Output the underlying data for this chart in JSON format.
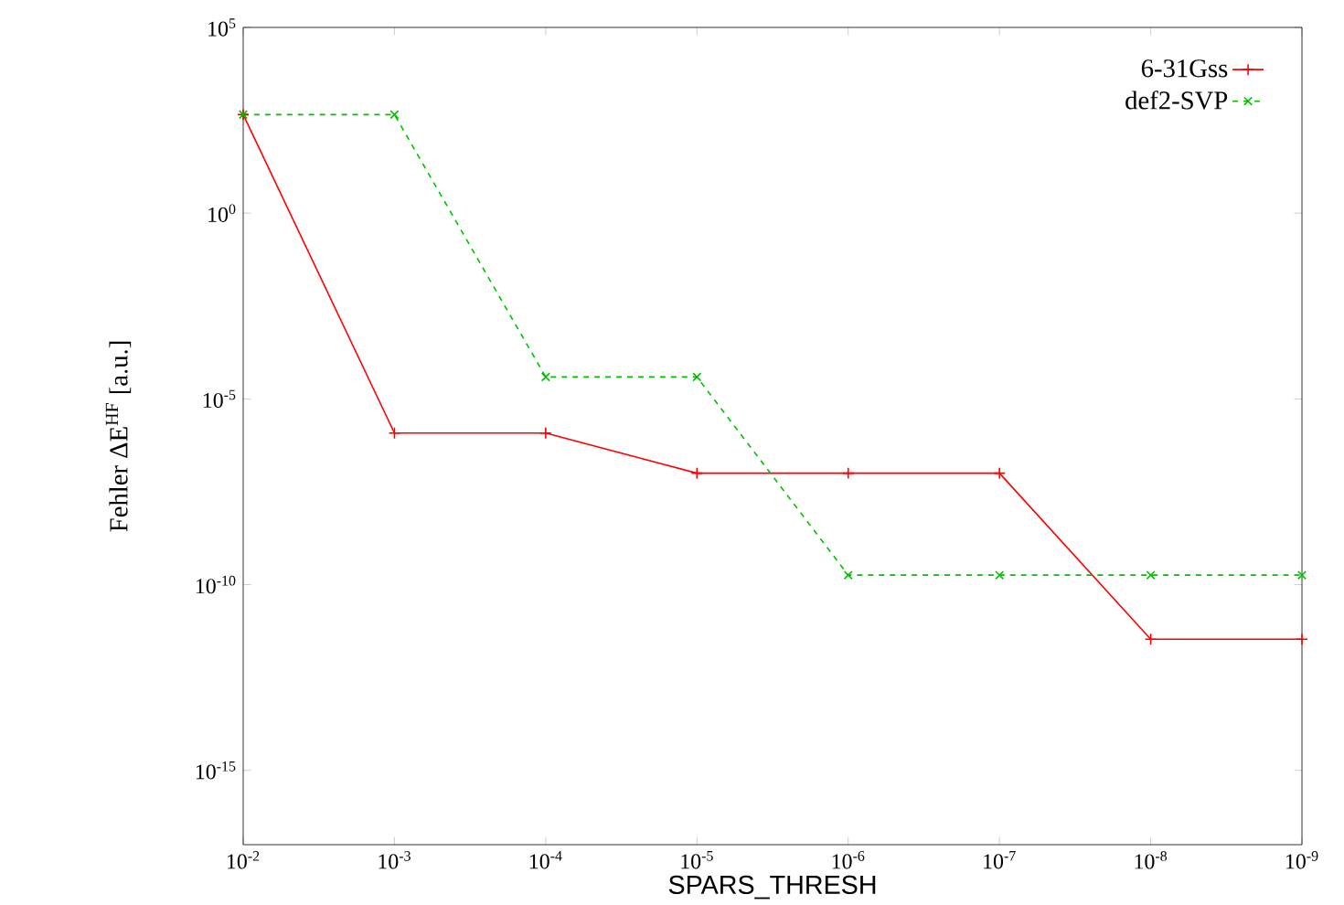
{
  "chart_data": {
    "type": "line",
    "xlabel": "SPARS_THRESH",
    "ylabel": "Fehler ΔE$^{HF}$ [a.u.]",
    "log": "xy",
    "legend": "top right",
    "grid": false,
    "x": [
      0.01,
      0.001,
      0.0001,
      1e-05,
      1e-06,
      1e-07,
      1e-08,
      1e-09
    ],
    "series": [
      {
        "name": "6-31Gss",
        "color": "#ff0000",
        "marker": "plus",
        "line_style": "solid",
        "values": [
          450,
          1.2e-06,
          1.2e-06,
          1e-07,
          1e-07,
          1e-07,
          3.4e-12,
          3.4e-12
        ]
      },
      {
        "name": "def2-SVP",
        "color": "#00c000",
        "marker": "cross",
        "line_style": "dashed",
        "values": [
          450,
          450,
          3.9e-05,
          3.9e-05,
          1.8e-10,
          1.8e-10,
          1.8e-10,
          1.8e-10
        ]
      }
    ],
    "xlim": [
      0.01,
      1e-09
    ],
    "ylim": [
      1e-17,
      100000
    ],
    "xticks": [
      {
        "value": 0.01,
        "label": "10$^{-2}$"
      },
      {
        "value": 0.001,
        "label": "10$^{-3}$"
      },
      {
        "value": 0.0001,
        "label": "10$^{-4}$"
      },
      {
        "value": 1e-05,
        "label": "10$^{-5}$"
      },
      {
        "value": 1e-06,
        "label": "10$^{-6}$"
      },
      {
        "value": 1e-07,
        "label": "10$^{-7}$"
      },
      {
        "value": 1e-08,
        "label": "10$^{-8}$"
      },
      {
        "value": 1e-09,
        "label": "10$^{-9}$"
      }
    ],
    "yticks": [
      {
        "value": 1e-15,
        "label": "10$^{-15}$"
      },
      {
        "value": 1e-10,
        "label": "10$^{-10}$"
      },
      {
        "value": 1e-05,
        "label": "10$^{-5}$"
      },
      {
        "value": 1,
        "label": "10$^{0}$"
      },
      {
        "value": 100000,
        "label": "10$^{5}$"
      }
    ]
  }
}
